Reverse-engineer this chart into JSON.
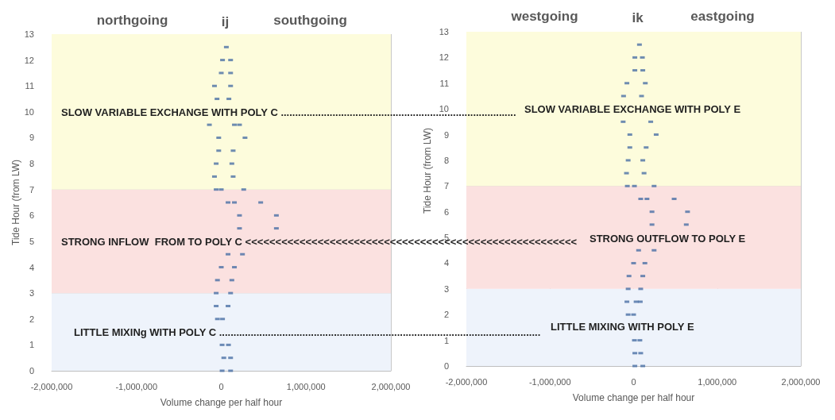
{
  "chart_data": [
    {
      "type": "scatter",
      "title": "ij",
      "xlabel": "Volume change per half hour",
      "ylabel": "Tide Hour (from LW)",
      "annotations": [
        "northgoing",
        "southgoing",
        "SLOW VARIABLE EXCHANGE WITH POLY C ..................................................................................",
        "STRONG INFLOW  FROM TO POLY C <<<<<<<<<<<<<<<<<<<<<<<<<<<<<<<<<<<<<<<<<<<<<<<<<<<<<<<",
        "LITTLE MIXINg WITH POLY C ................................................................................................................"
      ],
      "x": [
        60000,
        15000,
        110000,
        0,
        110000,
        -80000,
        110000,
        -50000,
        90000,
        -140000,
        155000,
        215000,
        -30000,
        280000,
        -30000,
        140000,
        -60000,
        125000,
        -80000,
        140000,
        -60000,
        0,
        265000,
        80000,
        155000,
        465000,
        215000,
        650000,
        215000,
        650000,
        80000,
        250000,
        0,
        155000,
        -45000,
        125000,
        -60000,
        110000,
        -60000,
        80000,
        -45000,
        15000,
        10000,
        85000,
        30000,
        110000,
        10000,
        110000
      ],
      "values": [
        12.5,
        12,
        12,
        11.5,
        11.5,
        11,
        11,
        10.5,
        10.5,
        9.5,
        9.5,
        9.5,
        9,
        9,
        8.5,
        8.5,
        8,
        8,
        7.5,
        7.5,
        7,
        7,
        7,
        6.5,
        6.5,
        6.5,
        6,
        6,
        5.5,
        5.5,
        4.5,
        4.5,
        4,
        4,
        3.5,
        3.5,
        3,
        3,
        2.5,
        2.5,
        2,
        2,
        1,
        1,
        0.5,
        0.5,
        0,
        0
      ],
      "color": "#4a6fa5",
      "marker": "square",
      "xlim": [
        -2000000,
        2000000
      ],
      "xticks": [
        {
          "value": -2000000,
          "label": "-2,000,000"
        },
        {
          "value": -1000000,
          "label": "-1,000,000"
        },
        0,
        {
          "value": 1000000,
          "label": "1,000,000"
        },
        {
          "value": 2000000,
          "label": "2,000,000"
        }
      ],
      "ylim": [
        0,
        13
      ],
      "yticks": [
        0,
        1,
        2,
        3,
        4,
        5,
        6,
        7,
        8,
        9,
        10,
        11,
        12,
        13
      ],
      "grid": true,
      "bands": [
        {
          "axis": "y",
          "from": 0,
          "to": 3,
          "color": "#eef3fb"
        },
        {
          "axis": "y",
          "from": 3,
          "to": 7,
          "color": "#fbe1e0"
        },
        {
          "axis": "y",
          "from": 7,
          "to": 13,
          "color": "#fdfcdc"
        }
      ]
    },
    {
      "type": "scatter",
      "title": "ik",
      "xlabel": "Volume change per half hour",
      "ylabel": "Tide Hour (from LW)",
      "annotations": [
        "westgoing",
        "eastgoing",
        "SLOW VARIABLE EXCHANGE WITH POLY E",
        "STRONG OUTFLOW TO POLY E",
        "LITTLE MIXING WITH POLY E"
      ],
      "x": [
        70000,
        15000,
        105000,
        15000,
        110000,
        -80000,
        140000,
        -120000,
        95000,
        -125000,
        205000,
        -45000,
        270000,
        -45000,
        150000,
        -65000,
        110000,
        -85000,
        125000,
        -75000,
        10000,
        245000,
        85000,
        160000,
        485000,
        220000,
        645000,
        220000,
        630000,
        60000,
        245000,
        0,
        135000,
        -55000,
        110000,
        -65000,
        85000,
        -80000,
        30000,
        80000,
        -65000,
        0,
        10000,
        75000,
        15000,
        85000,
        15000,
        110000
      ],
      "values": [
        12.5,
        12,
        12,
        11.5,
        11.5,
        11,
        11,
        10.5,
        10.5,
        9.5,
        9.5,
        9,
        9,
        8.5,
        8.5,
        8,
        8,
        7.5,
        7.5,
        7,
        7,
        7,
        6.5,
        6.5,
        6.5,
        6,
        6,
        5.5,
        5.5,
        4.5,
        4.5,
        4,
        4,
        3.5,
        3.5,
        3,
        3,
        2.5,
        2.5,
        2.5,
        2,
        2,
        1,
        1,
        0.5,
        0.5,
        0,
        0
      ],
      "color": "#4a6fa5",
      "marker": "square",
      "xlim": [
        -2000000,
        2000000
      ],
      "xticks": [
        {
          "value": -2000000,
          "label": "-2,000,000"
        },
        {
          "value": -1000000,
          "label": "-1,000,000"
        },
        0,
        {
          "value": 1000000,
          "label": "1,000,000"
        },
        {
          "value": 2000000,
          "label": "2,000,000"
        }
      ],
      "ylim": [
        0,
        13
      ],
      "yticks": [
        0,
        1,
        2,
        3,
        4,
        5,
        6,
        7,
        8,
        9,
        10,
        11,
        12,
        13
      ],
      "grid": true,
      "bands": [
        {
          "axis": "y",
          "from": 0,
          "to": 3,
          "color": "#eef3fb"
        },
        {
          "axis": "y",
          "from": 3,
          "to": 7,
          "color": "#fbe1e0"
        },
        {
          "axis": "y",
          "from": 7,
          "to": 13,
          "color": "#fdfcdc"
        }
      ]
    }
  ]
}
